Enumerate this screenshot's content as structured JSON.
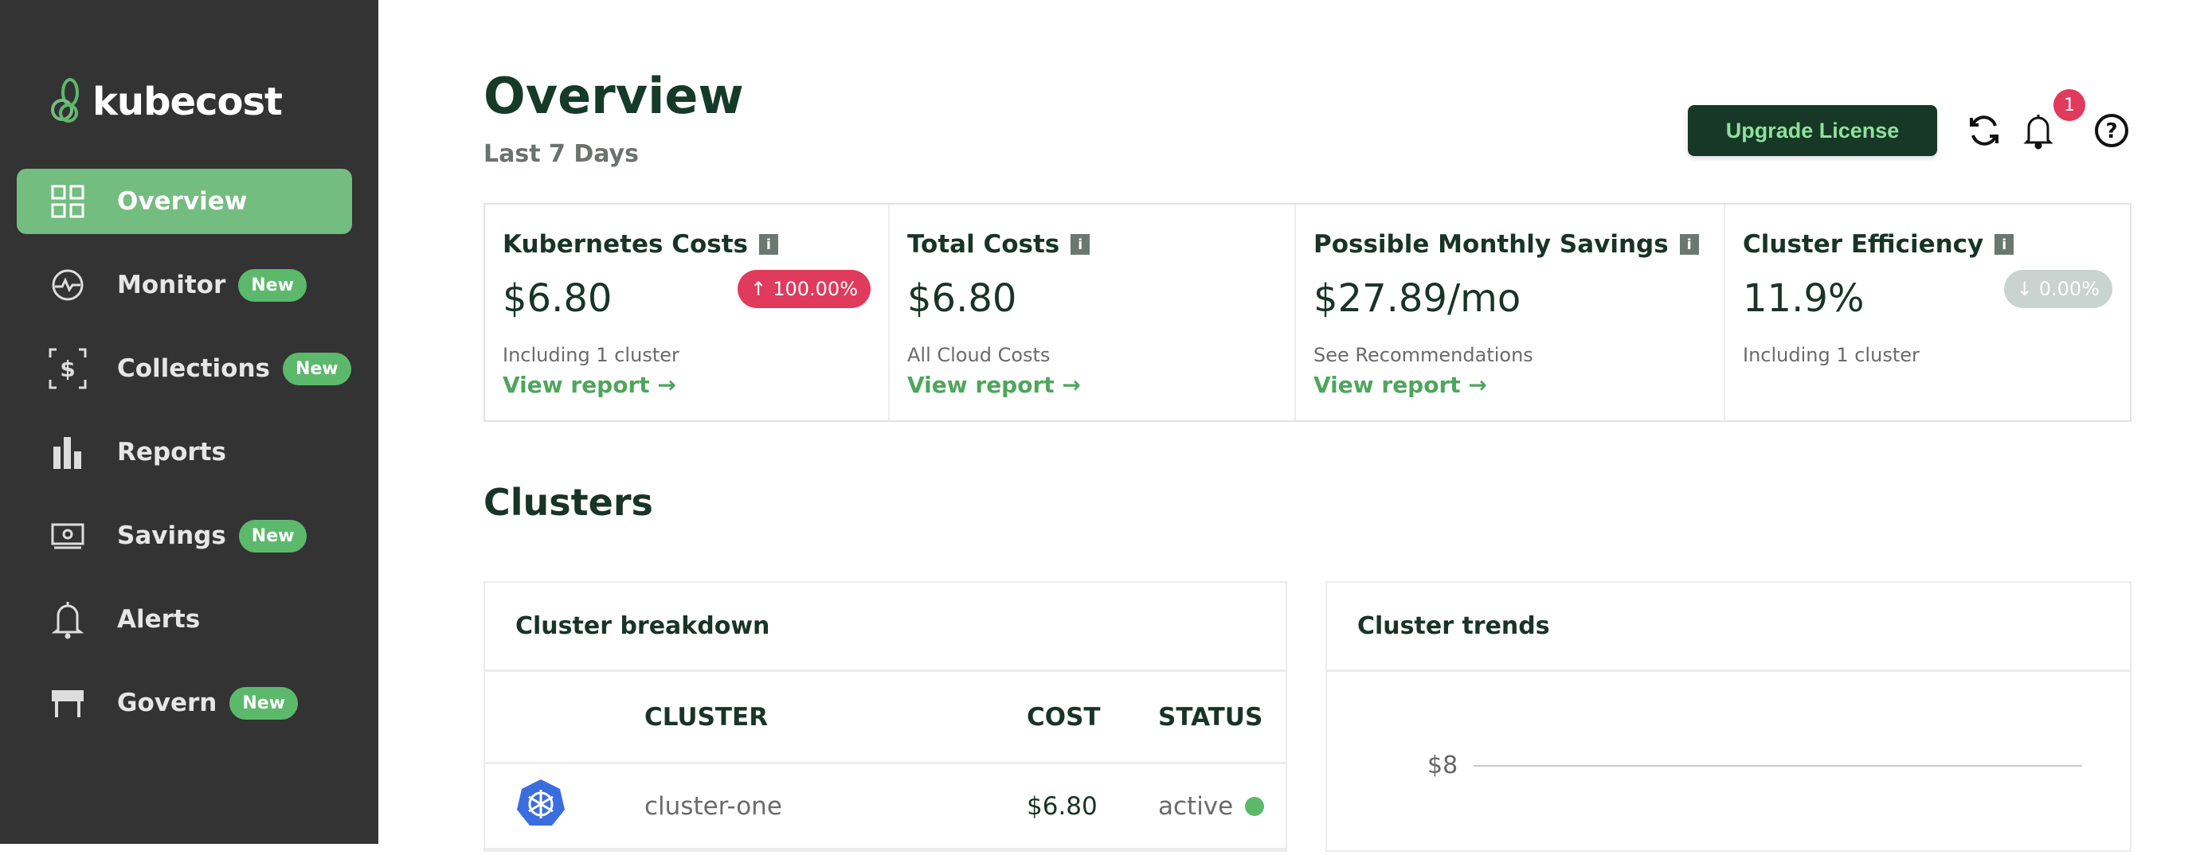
{
  "brand": {
    "name": "kubecost",
    "accent": "#74bd80"
  },
  "sidebar": {
    "items": [
      {
        "label": "Overview",
        "icon": "grid-icon",
        "active": true,
        "badge": ""
      },
      {
        "label": "Monitor",
        "icon": "monitor-icon",
        "badge": "New"
      },
      {
        "label": "Collections",
        "icon": "collections-icon",
        "badge": "New"
      },
      {
        "label": "Reports",
        "icon": "bar-chart-icon",
        "badge": ""
      },
      {
        "label": "Savings",
        "icon": "savings-icon",
        "badge": "New"
      },
      {
        "label": "Alerts",
        "icon": "bell-icon",
        "badge": ""
      },
      {
        "label": "Govern",
        "icon": "govern-icon",
        "badge": "New"
      }
    ]
  },
  "header": {
    "title": "Overview",
    "subtitle": "Last 7 Days",
    "upgrade_label": "Upgrade License",
    "notification_count": "1"
  },
  "cards": [
    {
      "title": "Kubernetes Costs",
      "value": "$6.80",
      "change": "100.00%",
      "change_dir": "up",
      "change_color": "#e03a5d",
      "note": "Including 1 cluster",
      "link": "View report →"
    },
    {
      "title": "Total Costs",
      "value": "$6.80",
      "note": "All Cloud Costs",
      "link": "View report →"
    },
    {
      "title": "Possible Monthly Savings",
      "value": "$27.89/mo",
      "note": "See Recommendations",
      "link": "View report →"
    },
    {
      "title": "Cluster Efficiency",
      "value": "11.9%",
      "change": "0.00%",
      "change_dir": "down",
      "change_color": "#c9d3cf",
      "note": "Including 1 cluster"
    }
  ],
  "clusters": {
    "heading": "Clusters",
    "breakdown": {
      "title": "Cluster breakdown",
      "columns": [
        "CLUSTER",
        "COST",
        "STATUS"
      ],
      "rows": [
        {
          "name": "cluster-one",
          "cost": "$6.80",
          "status": "active",
          "status_color": "#5cb96b"
        }
      ]
    },
    "trends": {
      "title": "Cluster trends",
      "y_tick": "$8"
    }
  }
}
